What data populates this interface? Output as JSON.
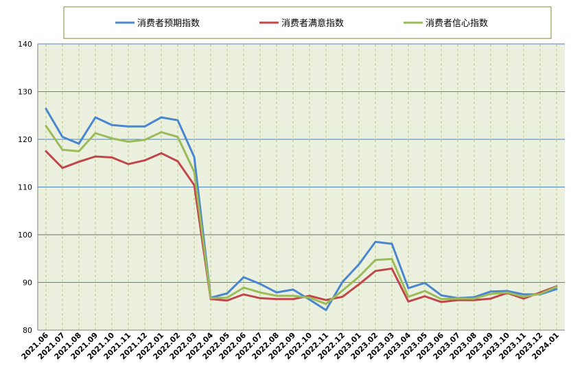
{
  "chart_data": {
    "type": "line",
    "ylim": [
      80,
      140
    ],
    "yticks": [
      80,
      90,
      100,
      110,
      120,
      130,
      140
    ],
    "grid": true,
    "legend_position": "top",
    "categories": [
      "2021.06",
      "2021.07",
      "2021.08",
      "2021.09",
      "2021.10",
      "2021.11",
      "2021.12",
      "2022.01",
      "2022.02",
      "2022.03",
      "2022.04",
      "2022.05",
      "2022.06",
      "2022.07",
      "2022.08",
      "2022.09",
      "2022.10",
      "2022.11",
      "2022.12",
      "2023.01",
      "2023.02",
      "2023.03",
      "2023.04",
      "2023.05",
      "2023.06",
      "2023.07",
      "2023.08",
      "2023.09",
      "2023.10",
      "2023.11",
      "2023.12",
      "2024.01"
    ],
    "series": [
      {
        "name": "消费者预期指数",
        "color": "#4a86d0",
        "values": [
          126.4,
          120.5,
          119.1,
          124.6,
          123.0,
          122.7,
          122.7,
          124.6,
          124.0,
          116.3,
          86.8,
          87.7,
          91.1,
          89.7,
          87.9,
          88.5,
          86.4,
          84.2,
          90.1,
          93.8,
          98.5,
          98.1,
          88.8,
          89.9,
          87.3,
          86.7,
          86.9,
          88.1,
          88.2,
          87.5,
          87.5,
          88.6
        ]
      },
      {
        "name": "消费者满意指数",
        "color": "#c0464a",
        "values": [
          117.5,
          114.0,
          115.3,
          116.4,
          116.2,
          114.8,
          115.6,
          117.1,
          115.4,
          110.4,
          86.5,
          86.2,
          87.5,
          86.7,
          86.5,
          86.5,
          87.2,
          86.3,
          87.0,
          89.6,
          92.4,
          92.9,
          86.0,
          87.1,
          85.9,
          86.3,
          86.3,
          86.6,
          87.8,
          86.6,
          87.9,
          89.2
        ]
      },
      {
        "name": "消费者信心指数",
        "color": "#9bbb59",
        "values": [
          122.8,
          117.8,
          117.5,
          121.3,
          120.2,
          119.5,
          119.9,
          121.5,
          120.5,
          113.2,
          86.7,
          86.8,
          88.9,
          87.9,
          87.2,
          87.2,
          86.8,
          85.5,
          88.3,
          91.2,
          94.7,
          94.9,
          87.0,
          88.2,
          86.5,
          86.6,
          86.6,
          87.6,
          87.9,
          87.0,
          87.6,
          89.1
        ]
      }
    ]
  }
}
